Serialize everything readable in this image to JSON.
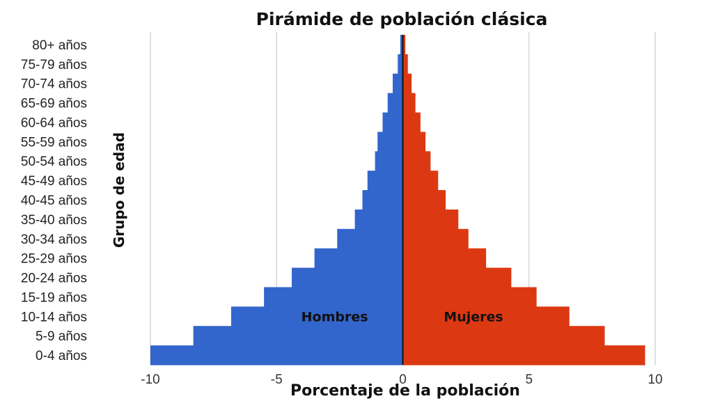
{
  "chart_data": {
    "type": "bar",
    "orientation": "horizontal",
    "title": "Pirámide de población clásica",
    "xlabel": "Porcentaje de la población",
    "ylabel": "Grupo de edad",
    "xlim": [
      -10,
      10
    ],
    "xticks": [
      -10,
      -5,
      0,
      5,
      10
    ],
    "xtick_labels": [
      "-10",
      "-5",
      "0",
      "5",
      "10"
    ],
    "grid": true,
    "categories": [
      "0-4 años",
      "5-9 años",
      "10-14 años",
      "15-19 años",
      "20-24 años",
      "25-29 años",
      "30-34 años",
      "35-40 años",
      "40-45 años",
      "45-49 años",
      "50-54 años",
      "55-59 años",
      "60-64 años",
      "65-69 años",
      "70-74 años",
      "75-79 años",
      "80+ años"
    ],
    "series": [
      {
        "name": "Hombres",
        "color": "#3366cc",
        "values": [
          -10.0,
          -8.3,
          -6.8,
          -5.5,
          -4.4,
          -3.5,
          -2.6,
          -1.9,
          -1.6,
          -1.4,
          -1.1,
          -1.0,
          -0.8,
          -0.6,
          -0.4,
          -0.2,
          -0.1
        ]
      },
      {
        "name": "Mujeres",
        "color": "#dc3912",
        "values": [
          9.6,
          8.0,
          6.6,
          5.3,
          4.3,
          3.3,
          2.6,
          2.2,
          1.7,
          1.4,
          1.1,
          0.9,
          0.7,
          0.5,
          0.35,
          0.2,
          0.1
        ]
      }
    ]
  }
}
